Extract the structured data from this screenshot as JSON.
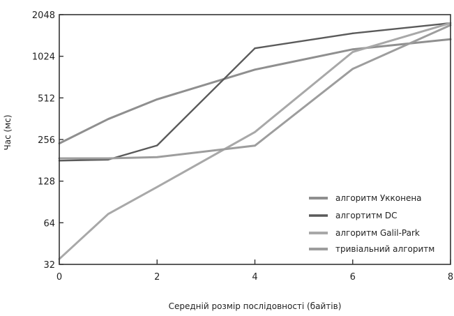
{
  "chart_data": {
    "type": "line",
    "xlabel": "Середній розмір послідовності (байтів)",
    "ylabel": "Час (мс)",
    "xlim": [
      0,
      8
    ],
    "ylim": [
      32,
      2048
    ],
    "yscale": "log2",
    "x_ticks": [
      0,
      2,
      4,
      6,
      8
    ],
    "x_tick_labels": [
      "0",
      "2",
      "4",
      "6",
      "8"
    ],
    "y_ticks": [
      32,
      64,
      128,
      256,
      512,
      1024,
      2048
    ],
    "y_tick_labels": [
      "32",
      "64",
      "128",
      "256",
      "512",
      "1024",
      "2048"
    ],
    "legend_position": "bottom-right",
    "series": [
      {
        "name": "алгоритм Укконена",
        "color": "#8f8f8f",
        "width": 3,
        "x": [
          0,
          1,
          2,
          4,
          6,
          8
        ],
        "y": [
          240,
          360,
          500,
          820,
          1150,
          1360
        ]
      },
      {
        "name": "алгортитм DC",
        "color": "#5a5a5a",
        "width": 2.4,
        "x": [
          0,
          1,
          2,
          4,
          6,
          8
        ],
        "y": [
          180,
          183,
          232,
          1170,
          1500,
          1780
        ]
      },
      {
        "name": "алгоритм Galil-Park",
        "color": "#a8a8a8",
        "width": 3,
        "x": [
          0,
          1,
          2,
          4,
          6,
          8
        ],
        "y": [
          35,
          74,
          116,
          290,
          1100,
          1780
        ]
      },
      {
        "name": "тривіальний алгоритм",
        "color": "#9d9d9d",
        "width": 3,
        "x": [
          0,
          1,
          2,
          4,
          6,
          8
        ],
        "y": [
          187,
          187,
          191,
          231,
          830,
          1720
        ]
      }
    ]
  }
}
